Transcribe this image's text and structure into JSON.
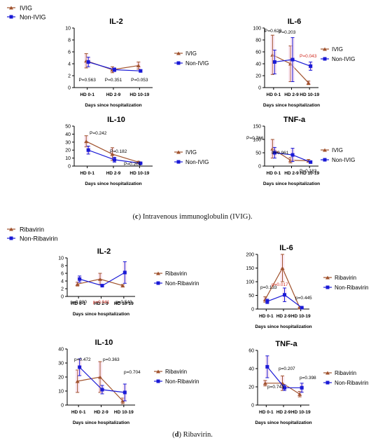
{
  "colors": {
    "treated": "#a0522d",
    "control": "#1a1ad6",
    "band": "#f7d6ea"
  },
  "captions": [
    {
      "letter": "c",
      "text": " Intravenous immunoglobulin (IVIG)."
    },
    {
      "letter": "d",
      "text": " Ribavirin."
    }
  ],
  "figure_legends": [
    {
      "treated": "IVIG",
      "control": "Non-IVIG"
    },
    {
      "treated": "Ribavirin",
      "control": "Non-Ribavirin"
    }
  ],
  "chart_data": [
    {
      "type": "line",
      "title": "IL-2",
      "xlabel": "Days since hospitalization",
      "categories": [
        "HD 0-1",
        "HD 2-9",
        "HD 10-19"
      ],
      "ylim": [
        0,
        10
      ],
      "yticks": [
        0,
        2,
        4,
        6,
        8,
        10
      ],
      "series": [
        {
          "name": "IVIG",
          "role": "treated",
          "values": [
            4.5,
            3.0,
            3.7
          ],
          "err": [
            1.2,
            0.5,
            0.6
          ]
        },
        {
          "name": "Non-IVIG",
          "role": "control",
          "values": [
            4.3,
            3.0,
            2.8
          ],
          "err": [
            0.8,
            0.3,
            0.2
          ]
        }
      ],
      "pvalues": [
        {
          "text": "P=0.563",
          "color": "black"
        },
        {
          "text": "P=0.351",
          "color": "black"
        },
        {
          "text": "P=0.053",
          "color": "black"
        }
      ],
      "legend": [
        "IVIG",
        "Non-IVIG"
      ]
    },
    {
      "type": "line",
      "title": "IL-6",
      "xlabel": "Days since hospitalization",
      "categories": [
        "HD 0-1",
        "HD 2-9",
        "HD 10-19"
      ],
      "ylim": [
        0,
        100
      ],
      "yticks": [
        0,
        20,
        40,
        60,
        80,
        100
      ],
      "series": [
        {
          "name": "IVIG",
          "role": "treated",
          "values": [
            55,
            40,
            8
          ],
          "err": [
            33,
            30,
            3
          ]
        },
        {
          "name": "Non-IVIG",
          "role": "control",
          "values": [
            43,
            47,
            36
          ],
          "err": [
            20,
            37,
            7
          ]
        }
      ],
      "pvalues": [
        {
          "text": "P=0.629",
          "color": "black"
        },
        {
          "text": "P=0.203",
          "color": "black"
        },
        {
          "text": "P=0.043",
          "color": "red"
        }
      ],
      "legend": [
        "IVIG",
        "Non-IVIG"
      ]
    },
    {
      "type": "line",
      "title": "IL-10",
      "xlabel": "Days since hospitalization",
      "categories": [
        "HD 0-1",
        "HD 2-9",
        "HD 10-19"
      ],
      "ylim": [
        0,
        50
      ],
      "yticks": [
        0,
        10,
        20,
        30,
        40,
        50
      ],
      "series": [
        {
          "name": "IVIG",
          "role": "treated",
          "values": [
            31,
            15,
            5
          ],
          "err": [
            7,
            8,
            1
          ]
        },
        {
          "name": "Non-IVIG",
          "role": "control",
          "values": [
            20,
            8,
            3.5
          ],
          "err": [
            5,
            3,
            0.5
          ]
        }
      ],
      "pvalues": [
        {
          "text": "P=0.242",
          "color": "black"
        },
        {
          "text": "P=0.182",
          "color": "black"
        },
        {
          "text": "P=0.201",
          "color": "black"
        }
      ],
      "legend": [
        "IVIG",
        "Non-IVIG"
      ]
    },
    {
      "type": "line",
      "title": "TNF-a",
      "xlabel": "Days since hospitalization",
      "categories": [
        "HD 0-1",
        "HD 2-9",
        "HD 10-19"
      ],
      "ylim": [
        0,
        150
      ],
      "yticks": [
        0,
        50,
        100,
        150
      ],
      "series": [
        {
          "name": "IVIG",
          "role": "treated",
          "values": [
            65,
            22,
            20
          ],
          "err": [
            35,
            10,
            5
          ]
        },
        {
          "name": "Non-IVIG",
          "role": "control",
          "values": [
            50,
            42,
            15
          ],
          "err": [
            20,
            25,
            4
          ]
        }
      ],
      "pvalues": [
        {
          "text": "P=0.766",
          "color": "black"
        },
        {
          "text": "P=0.961",
          "color": "black"
        },
        {
          "text": "P=0.183",
          "color": "black"
        }
      ],
      "legend": [
        "IVIG",
        "Non-IVIG"
      ]
    },
    {
      "type": "line",
      "title": "IL-2",
      "xlabel": "Days since hospitalization",
      "categories": [
        "HD 0-1",
        "HD 2-9",
        "HD 10-19"
      ],
      "ylim": [
        0,
        10
      ],
      "yticks": [
        0,
        2,
        4,
        6,
        8,
        10
      ],
      "series": [
        {
          "name": "Ribavirin",
          "role": "treated",
          "values": [
            3.2,
            4.5,
            2.8
          ],
          "err": [
            0.5,
            1.5,
            0.3
          ]
        },
        {
          "name": "Non-Ribavirin",
          "role": "control",
          "values": [
            4.5,
            2.8,
            6.2
          ],
          "err": [
            0.8,
            0.3,
            2.8
          ]
        }
      ],
      "pvalues": [
        {
          "text": "p=0.980",
          "color": "black"
        },
        {
          "text": "p=0.041",
          "color": "red"
        },
        {
          "text": "p=0.543",
          "color": "black"
        }
      ],
      "legend": [
        "Ribavirin",
        "Non-Ribavirin"
      ]
    },
    {
      "type": "line",
      "title": "IL-6",
      "xlabel": "Days since hospitalization",
      "categories": [
        "HD 0-1",
        "HD 2-9",
        "HD 10-19"
      ],
      "ylim": [
        0,
        200
      ],
      "yticks": [
        0,
        50,
        100,
        150,
        200
      ],
      "series": [
        {
          "name": "Ribavirin",
          "role": "treated",
          "values": [
            35,
            150,
            5
          ],
          "err": [
            10,
            50,
            2
          ]
        },
        {
          "name": "Non-Ribavirin",
          "role": "control",
          "values": [
            28,
            52,
            5
          ],
          "err": [
            8,
            25,
            2
          ]
        }
      ],
      "pvalues": [
        {
          "text": "p=0.133",
          "color": "black"
        },
        {
          "text": "p=0.017",
          "color": "red"
        },
        {
          "text": "p=0.445",
          "color": "black"
        }
      ],
      "legend": [
        "Ribavirin",
        "Non-Ribavirin"
      ]
    },
    {
      "type": "line",
      "title": "IL-10",
      "xlabel": "Days since hospitalization",
      "categories": [
        "HD 0-1",
        "HD 2-9",
        "HD 10-19"
      ],
      "ylim": [
        0,
        40
      ],
      "yticks": [
        0,
        10,
        20,
        30,
        40
      ],
      "series": [
        {
          "name": "Ribavirin",
          "role": "treated",
          "values": [
            17,
            20,
            3
          ],
          "err": [
            8,
            11,
            2
          ]
        },
        {
          "name": "Non-Ribavirin",
          "role": "control",
          "values": [
            27,
            11,
            9
          ],
          "err": [
            6,
            3,
            6
          ]
        }
      ],
      "pvalues": [
        {
          "text": "p=0.472",
          "color": "black"
        },
        {
          "text": "p=0.363",
          "color": "black"
        },
        {
          "text": "p=0.704",
          "color": "black"
        }
      ],
      "legend": [
        "Ribavirin",
        "Non-Ribavirin"
      ]
    },
    {
      "type": "line",
      "title": "TNF-a",
      "xlabel": "Days since hospitalization",
      "categories": [
        "HD 0-1",
        "HD 2-9",
        "HD 10-19"
      ],
      "ylim": [
        0,
        60
      ],
      "yticks": [
        0,
        20,
        40,
        60
      ],
      "series": [
        {
          "name": "Ribavirin",
          "role": "treated",
          "values": [
            24,
            24,
            12
          ],
          "err": [
            3,
            8,
            3
          ]
        },
        {
          "name": "Non-Ribavirin",
          "role": "control",
          "values": [
            42,
            19,
            19
          ],
          "err": [
            12,
            3,
            5
          ]
        }
      ],
      "pvalues": [
        {
          "text": "p=0.743",
          "color": "black"
        },
        {
          "text": "p=0.207",
          "color": "black"
        },
        {
          "text": "p=0.398",
          "color": "black"
        }
      ],
      "legend": [
        "Ribavirin",
        "Non-Ribavirin"
      ]
    }
  ]
}
